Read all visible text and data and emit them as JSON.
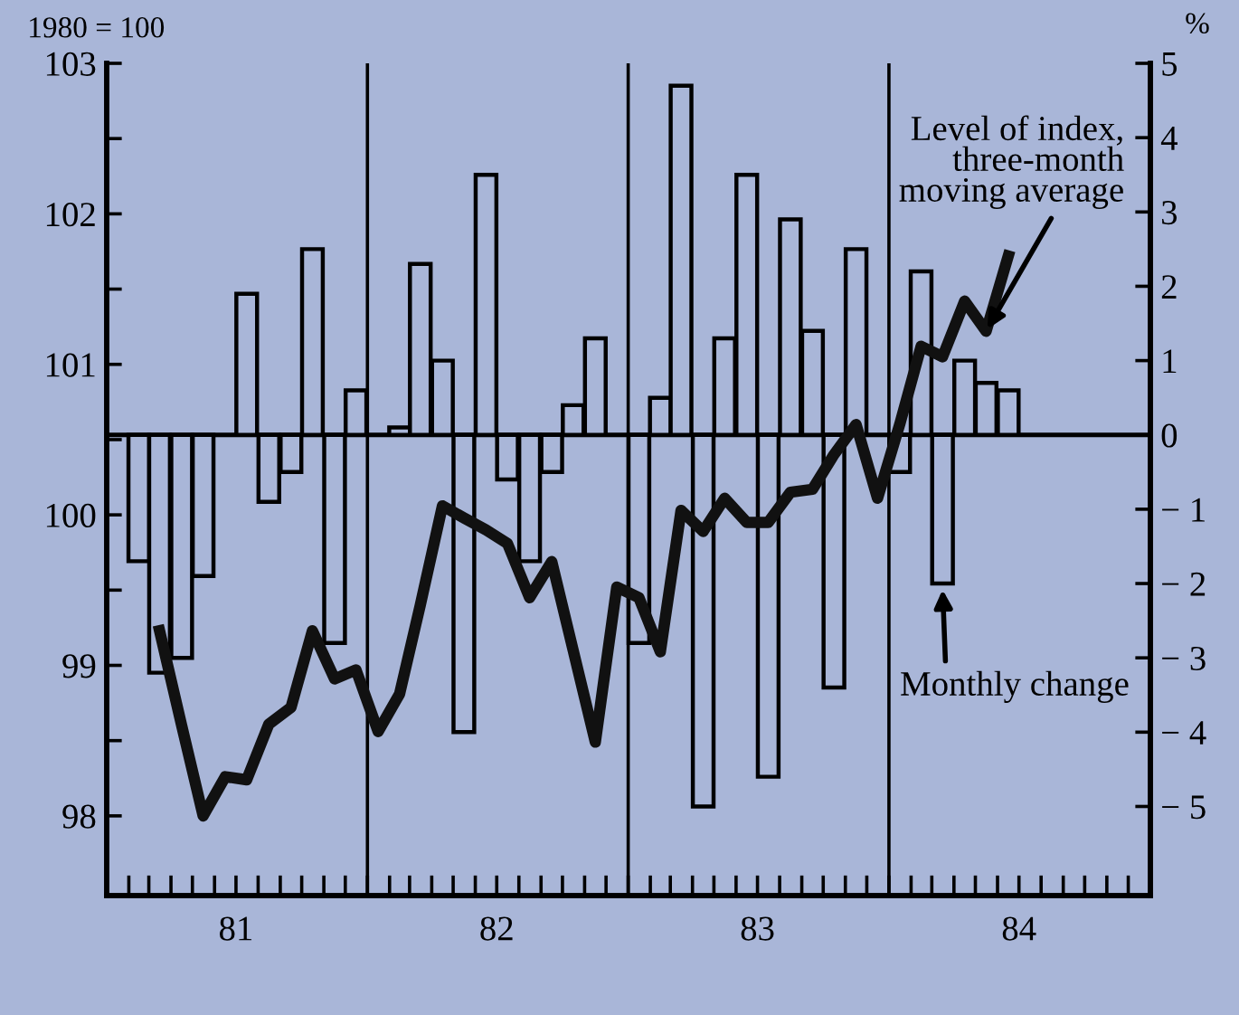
{
  "chart_data": {
    "type": "bar",
    "ylabel": "1980 = 100",
    "y2label": "%",
    "xlim": [
      "1981-01-01",
      "1985-01-01"
    ],
    "xticks": [
      {
        "value": "1981-01-01",
        "label": null
      },
      {
        "value": "1981-02-01",
        "label": null
      },
      {
        "value": "1981-03-01",
        "label": null
      },
      {
        "value": "1981-04-01",
        "label": null
      },
      {
        "value": "1981-05-01",
        "label": null
      },
      {
        "value": "1981-06-01",
        "label": null
      },
      {
        "value": "1981-07-01",
        "label": "81"
      },
      {
        "value": "1981-08-01",
        "label": null
      },
      {
        "value": "1981-09-01",
        "label": null
      },
      {
        "value": "1981-10-01",
        "label": null
      },
      {
        "value": "1981-11-01",
        "label": null
      },
      {
        "value": "1981-12-01",
        "label": null
      },
      {
        "value": "1982-01-01",
        "label": null
      },
      {
        "value": "1982-02-01",
        "label": null
      },
      {
        "value": "1982-03-01",
        "label": null
      },
      {
        "value": "1982-04-01",
        "label": null
      },
      {
        "value": "1982-05-01",
        "label": null
      },
      {
        "value": "1982-06-01",
        "label": null
      },
      {
        "value": "1982-07-01",
        "label": "82"
      },
      {
        "value": "1982-08-01",
        "label": null
      },
      {
        "value": "1982-09-01",
        "label": null
      },
      {
        "value": "1982-10-01",
        "label": null
      },
      {
        "value": "1982-11-01",
        "label": null
      },
      {
        "value": "1982-12-01",
        "label": null
      },
      {
        "value": "1983-01-01",
        "label": null
      },
      {
        "value": "1983-02-01",
        "label": null
      },
      {
        "value": "1983-03-01",
        "label": null
      },
      {
        "value": "1983-04-01",
        "label": null
      },
      {
        "value": "1983-05-01",
        "label": null
      },
      {
        "value": "1983-06-01",
        "label": null
      },
      {
        "value": "1983-07-01",
        "label": "83"
      },
      {
        "value": "1983-08-01",
        "label": null
      },
      {
        "value": "1983-09-01",
        "label": null
      },
      {
        "value": "1983-10-01",
        "label": null
      },
      {
        "value": "1983-11-01",
        "label": null
      },
      {
        "value": "1983-12-01",
        "label": null
      },
      {
        "value": "1984-01-01",
        "label": null
      },
      {
        "value": "1984-02-01",
        "label": null
      },
      {
        "value": "1984-03-01",
        "label": null
      },
      {
        "value": "1984-04-01",
        "label": null
      },
      {
        "value": "1984-05-01",
        "label": null
      },
      {
        "value": "1984-06-01",
        "label": null
      },
      {
        "value": "1984-07-01",
        "label": "84"
      },
      {
        "value": "1984-08-01",
        "label": null
      },
      {
        "value": "1984-09-01",
        "label": null
      },
      {
        "value": "1984-10-01",
        "label": null
      },
      {
        "value": "1984-11-01",
        "label": null
      },
      {
        "value": "1984-12-01",
        "label": null
      },
      {
        "value": "1985-01-01",
        "label": null
      }
    ],
    "ylim": [
      97.47,
      103
    ],
    "yticks": [
      98,
      {
        "value": 98.5,
        "label": null
      },
      99,
      {
        "value": 99.5,
        "label": null
      },
      100,
      {
        "value": 100.5,
        "label": null
      },
      101,
      {
        "value": 101.5,
        "label": null
      },
      102,
      {
        "value": 102.5,
        "label": null
      },
      103
    ],
    "y2lim": [
      -6.2,
      5
    ],
    "y2ticks": [
      {
        "value": -5,
        "label": "− 5"
      },
      {
        "value": -4,
        "label": "− 4"
      },
      {
        "value": -3,
        "label": "− 3"
      },
      {
        "value": -2,
        "label": "− 2"
      },
      {
        "value": -1,
        "label": "− 1"
      },
      0,
      1,
      2,
      3,
      4,
      5
    ],
    "grid": false,
    "legend": false,
    "ref_lines": [
      {
        "axis": "x",
        "value": "1982-01-01",
        "color": "#000000"
      },
      {
        "axis": "x",
        "value": "1983-01-01",
        "color": "#000000"
      },
      {
        "axis": "x",
        "value": "1984-01-01",
        "color": "#000000"
      },
      {
        "axis": "y2",
        "value": 0,
        "color": "#000000"
      }
    ],
    "series": [
      {
        "axis": "y2",
        "color": "#000000",
        "x": [
          "1981-02-15",
          "1981-03-16",
          "1981-04-16",
          "1981-05-16",
          "1981-06-16",
          "1981-07-16",
          "1981-08-16",
          "1981-09-16",
          "1981-10-16",
          "1981-11-16",
          "1981-12-16",
          "1982-01-16",
          "1982-02-15",
          "1982-03-16",
          "1982-04-16",
          "1982-05-16",
          "1982-06-16",
          "1982-07-16",
          "1982-08-16",
          "1982-09-16",
          "1982-10-16",
          "1982-11-16",
          "1982-12-16",
          "1983-01-16",
          "1983-02-15",
          "1983-03-16",
          "1983-04-16",
          "1983-05-16",
          "1983-06-16",
          "1983-07-16",
          "1983-08-16",
          "1983-09-16",
          "1983-10-16",
          "1983-11-16",
          "1983-12-16",
          "1984-01-16",
          "1984-02-15",
          "1984-03-16",
          "1984-04-16",
          "1984-05-16",
          "1984-06-16"
        ],
        "values": [
          -1.7,
          -3.2,
          -3.0,
          -1.9,
          null,
          1.9,
          -0.9,
          -0.5,
          2.5,
          -2.8,
          0.6,
          null,
          0.1,
          2.3,
          1.0,
          -4.0,
          3.5,
          -0.6,
          -1.7,
          -0.5,
          0.4,
          1.3,
          null,
          -2.8,
          0.5,
          4.7,
          -5.0,
          1.3,
          3.5,
          -4.6,
          2.9,
          1.4,
          -3.4,
          2.5,
          null,
          -0.5,
          2.2,
          -2.0,
          1.0,
          0.7,
          0.6
        ]
      },
      {
        "type": "line",
        "color": "#111111",
        "line_style": "solid",
        "marker": "none",
        "x": [
          "1981-03-16",
          "1981-04-16",
          "1981-05-16",
          "1981-06-16",
          "1981-07-16",
          "1981-08-16",
          "1981-09-16",
          "1981-10-16",
          "1981-11-16",
          "1981-12-16",
          "1982-01-16",
          "1982-02-15",
          "1982-03-16",
          "1982-04-16",
          "1982-05-16",
          "1982-06-16",
          "1982-07-16",
          "1982-08-16",
          "1982-09-16",
          "1982-10-16",
          "1982-11-16",
          "1982-12-16",
          "1983-01-16",
          "1983-02-15",
          "1983-03-16",
          "1983-04-16",
          "1983-05-16",
          "1983-06-16",
          "1983-07-16",
          "1983-08-16",
          "1983-09-16",
          "1983-10-16",
          "1983-11-16",
          "1983-12-16",
          "1984-01-16",
          "1984-02-15",
          "1984-03-16",
          "1984-04-16",
          "1984-05-16",
          "1984-06-16"
        ],
        "values": [
          99.23,
          98.6,
          98.0,
          98.26,
          98.24,
          98.61,
          98.72,
          99.23,
          98.91,
          98.97,
          98.56,
          98.81,
          99.4,
          100.06,
          99.98,
          99.9,
          99.81,
          99.45,
          99.69,
          99.1,
          98.49,
          99.52,
          99.45,
          99.09,
          100.03,
          99.89,
          100.11,
          99.95,
          99.95,
          100.15,
          100.17,
          100.4,
          100.6,
          100.11,
          100.6,
          101.12,
          101.05,
          101.42,
          101.22,
          101.72
        ]
      }
    ],
    "annotations": [
      {
        "text": "Level of index,\nthree-month\nmoving average",
        "x": "1984-05-16",
        "y": 101.22
      },
      {
        "text": "Monthly change",
        "x": "1984-03-16",
        "y": 99.52
      }
    ]
  }
}
